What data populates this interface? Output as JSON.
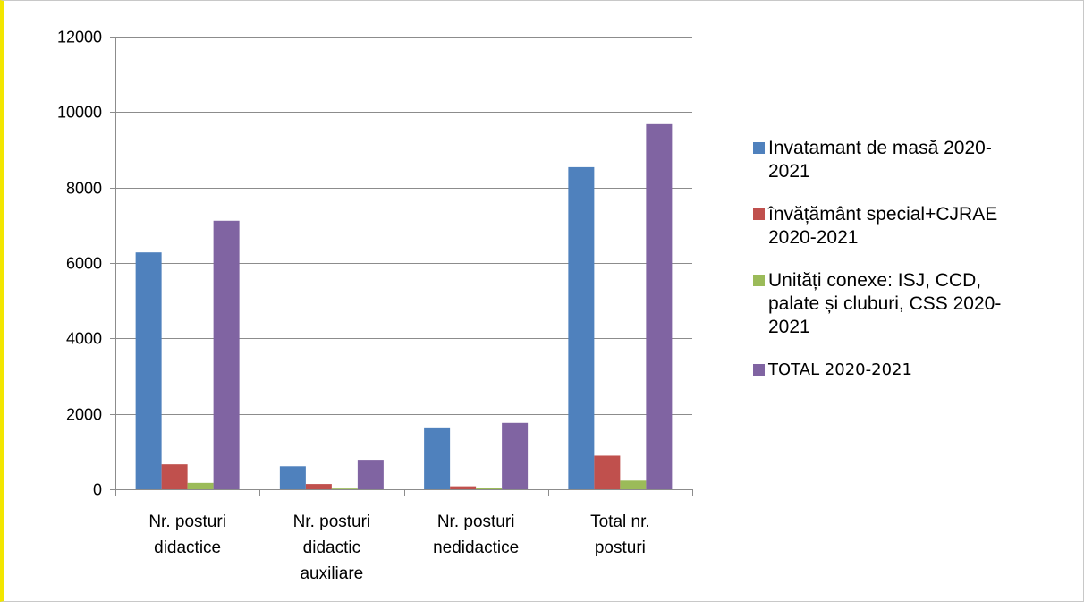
{
  "chart_data": {
    "type": "bar",
    "categories": [
      [
        "Nr. posturi",
        "didactice"
      ],
      [
        "Nr. posturi",
        "didactic",
        "auxiliare"
      ],
      [
        "Nr. posturi",
        "nedidactice"
      ],
      [
        "Total nr.",
        "posturi"
      ]
    ],
    "series": [
      {
        "name": "Invatamant de masă 2020-2021",
        "legend_lines": [
          "Invatamant de masă 2020-",
          "2021"
        ],
        "color": "#4f81bd",
        "values": [
          6280,
          610,
          1640,
          8540
        ]
      },
      {
        "name": "învățământ special+CJRAE 2020-2021",
        "legend_lines": [
          "învățământ special+CJRAE",
          "2020-2021"
        ],
        "color": "#c0504d",
        "values": [
          660,
          140,
          80,
          890
        ]
      },
      {
        "name": "Unități conexe: ISJ, CCD, palate și cluburi, CSS 2020-2021",
        "legend_lines": [
          "Unități conexe: ISJ, CCD,",
          "palate și cluburi, CSS 2020-",
          "2021"
        ],
        "color": "#9bbb59",
        "values": [
          170,
          20,
          30,
          230
        ]
      },
      {
        "name": "TOTAL 2020-2021",
        "legend_lines": [
          "TOTAL 2020-2021"
        ],
        "color": "#8064a2",
        "values": [
          7120,
          780,
          1760,
          9680
        ]
      }
    ],
    "ylim": [
      0,
      12000
    ],
    "yticks": [
      "0",
      "2000",
      "4000",
      "6000",
      "8000",
      "10000",
      "12000"
    ],
    "grid": true,
    "legend_position": "right",
    "title": "",
    "xlabel": "",
    "ylabel": ""
  }
}
